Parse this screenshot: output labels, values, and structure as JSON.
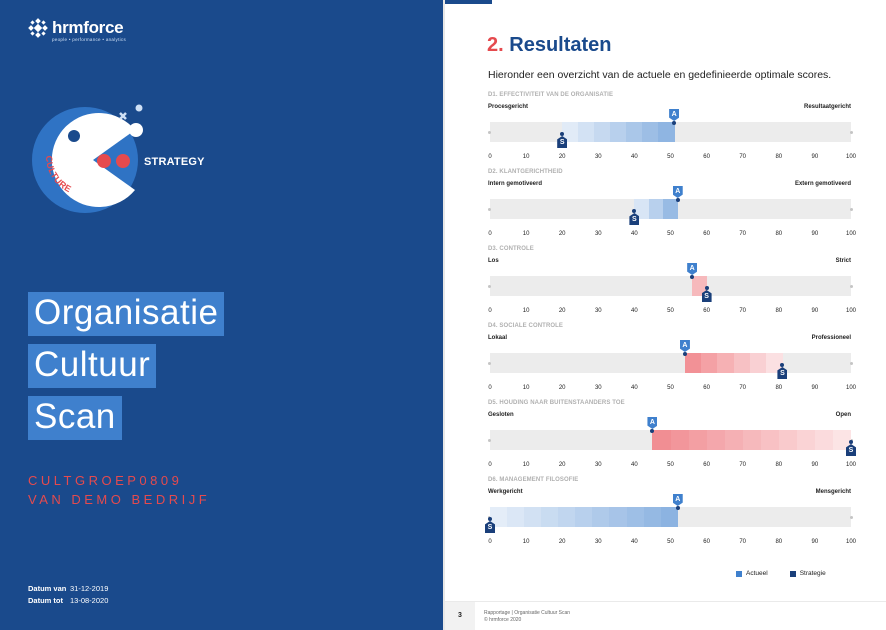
{
  "cover": {
    "brand": "hrmforce",
    "tagline": "people • performance • analytics",
    "badge": {
      "circle_text": "CULTURE",
      "side_text": "STRATEGY"
    },
    "title_lines": [
      "Organisatie",
      "Cultuur",
      "Scan"
    ],
    "subtitle_lines": [
      "CULTGROEP0809",
      "VAN DEMO BEDRIJF"
    ],
    "dates": [
      {
        "label": "Datum van",
        "value": "31-12-2019"
      },
      {
        "label": "Datum tot",
        "value": "13-08-2020"
      }
    ],
    "colors": {
      "background": "#1a4a8c",
      "accent": "#e54a4e",
      "highlight": "#3f80cd"
    }
  },
  "page": {
    "number": "3",
    "heading_num": "2.",
    "heading_text": "Resultaten",
    "intro": "Hieronder een overzicht van de actuele en gedefinieerde optimale scores.",
    "footer_lines": [
      "Rapportage | Organisatie Cultuur Scan",
      "© hrmforce 2020"
    ],
    "legend": [
      {
        "label": "Actueel",
        "color": "#3f80cd"
      },
      {
        "label": "Strategie",
        "color": "#1a3f7a"
      }
    ],
    "marker_a_label": "A",
    "marker_s_label": "S"
  },
  "chart_data": {
    "type": "range-bar",
    "xlim": [
      0,
      100
    ],
    "ticks": [
      0,
      10,
      20,
      30,
      40,
      50,
      60,
      70,
      80,
      90,
      100
    ],
    "colors": {
      "below_strategy": "#3f80cd",
      "above_strategy": "#e8414a",
      "track": "#ececec"
    },
    "dimensions": [
      {
        "title": "D1. EFFECTIVITEIT VAN DE ORGANISATIE",
        "left": "Procesgericht",
        "right": "Resultaatgericht",
        "actueel": 51,
        "strategie": 20
      },
      {
        "title": "D2. KLANTGERICHTHEID",
        "left": "Intern gemotiveerd",
        "right": "Extern gemotiveerd",
        "actueel": 52,
        "strategie": 40
      },
      {
        "title": "D3. CONTROLE",
        "left": "Los",
        "right": "Strict",
        "actueel": 56,
        "strategie": 60
      },
      {
        "title": "D4. SOCIALE CONTROLE",
        "left": "Lokaal",
        "right": "Professioneel",
        "actueel": 54,
        "strategie": 81
      },
      {
        "title": "D5. HOUDING NAAR BUITENSTAANDERS TOE",
        "left": "Gesloten",
        "right": "Open",
        "actueel": 45,
        "strategie": 100
      },
      {
        "title": "D6. MANAGEMENT FILOSOFIE",
        "left": "Werkgericht",
        "right": "Mensgericht",
        "actueel": 52,
        "strategie": 0
      }
    ]
  }
}
